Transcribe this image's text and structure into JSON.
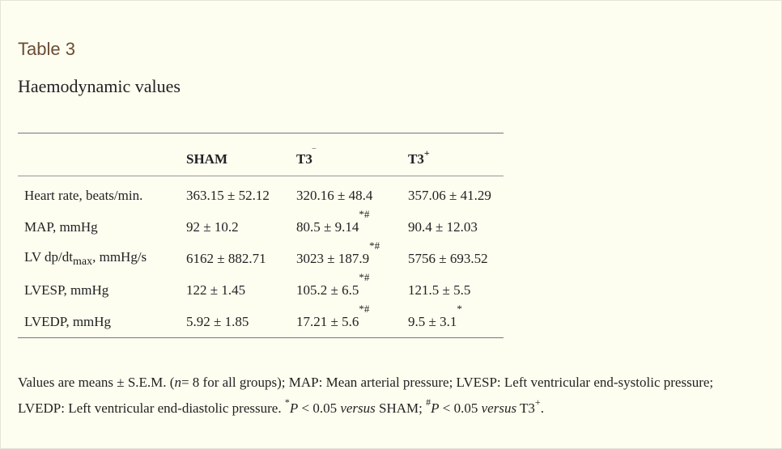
{
  "table_label": "Table 3",
  "table_title": "Haemodynamic values",
  "table": {
    "headers": {
      "sham": "SHAM",
      "t3_minus": {
        "base": "T3",
        "sup": "‾"
      },
      "t3_plus": {
        "base": "T3",
        "sup": "+"
      }
    },
    "rows": [
      {
        "label": "Heart rate, beats/min.",
        "sham": "363.15 ± 52.12",
        "t3_minus": "320.16 ± 48.4",
        "t3_minus_mark": "",
        "t3_plus": "357.06 ± 41.29",
        "t3_plus_mark": ""
      },
      {
        "label": "MAP, mmHg",
        "sham": "92 ± 10.2",
        "t3_minus": "80.5 ± 9.14",
        "t3_minus_mark": "*#",
        "t3_plus": "90.4 ± 12.03",
        "t3_plus_mark": ""
      },
      {
        "label_pre": "LV dp/dt",
        "label_sub": "max",
        "label_post": ", mmHg/s",
        "sham": "6162 ± 882.71",
        "t3_minus": "3023 ± 187.9",
        "t3_minus_mark": "*#",
        "t3_plus": "5756 ± 693.52",
        "t3_plus_mark": ""
      },
      {
        "label": "LVESP, mmHg",
        "sham": "122 ± 1.45",
        "t3_minus": "105.2 ± 6.5",
        "t3_minus_mark": "*#",
        "t3_plus": "121.5 ± 5.5",
        "t3_plus_mark": ""
      },
      {
        "label": "LVEDP, mmHg",
        "sham": "5.92 ± 1.85",
        "t3_minus": "17.21 ± 5.6",
        "t3_minus_mark": "*#",
        "t3_plus": "9.5 ± 3.1",
        "t3_plus_mark": "*"
      }
    ]
  },
  "footnote": {
    "part1": "Values are means ± S.E.M. (",
    "n_italic": "n",
    "part2": "= 8 for all groups); MAP: Mean arterial pressure; LVESP: Left ventricular end-systolic pressure; LVEDP: Left ventricular end-diastolic pressure. ",
    "star_sup": "*",
    "p1_italic": "P",
    "part3": " < 0.05 ",
    "versus1": "versus",
    "part4": " SHAM; ",
    "hash_sup": "#",
    "p2_italic": "P",
    "part5": " < 0.05 ",
    "versus2": "versus",
    "part6": " T3",
    "t3_sup": "+",
    "part7": "."
  }
}
